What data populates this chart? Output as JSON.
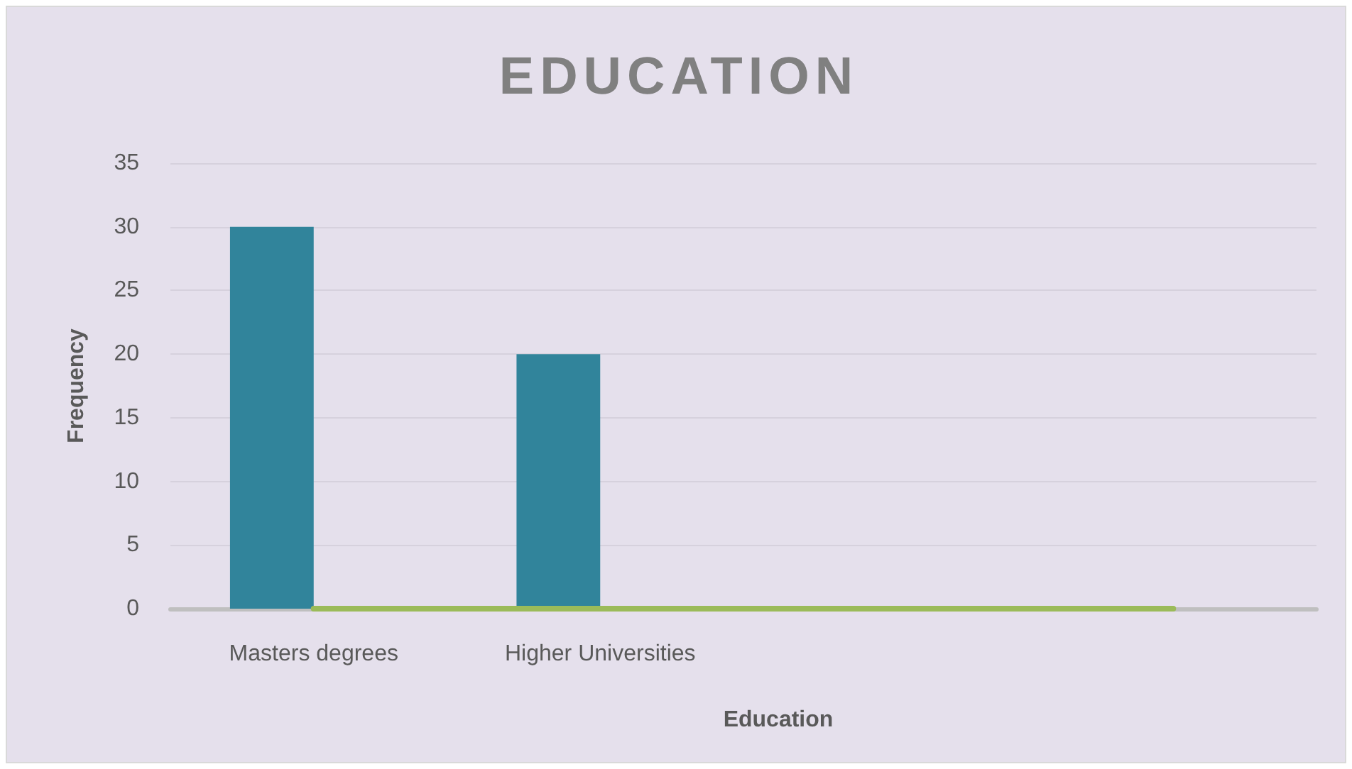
{
  "chart_data": {
    "type": "bar",
    "title": "EDUCATION",
    "xlabel": "Education",
    "ylabel": "Frequency",
    "categories": [
      "Masters degrees",
      "Higher Universities",
      null,
      null
    ],
    "series": [
      {
        "color": "#31849b",
        "values": [
          30,
          20,
          null,
          null
        ]
      },
      {
        "type": "line",
        "color": "#9bbb59",
        "values": [
          0,
          0,
          0,
          0
        ]
      }
    ],
    "ylim": [
      0,
      35
    ],
    "yticks": [
      0,
      5,
      10,
      15,
      20,
      25,
      30,
      35
    ],
    "grid": "y",
    "marker": "none",
    "line_style": "solid"
  }
}
